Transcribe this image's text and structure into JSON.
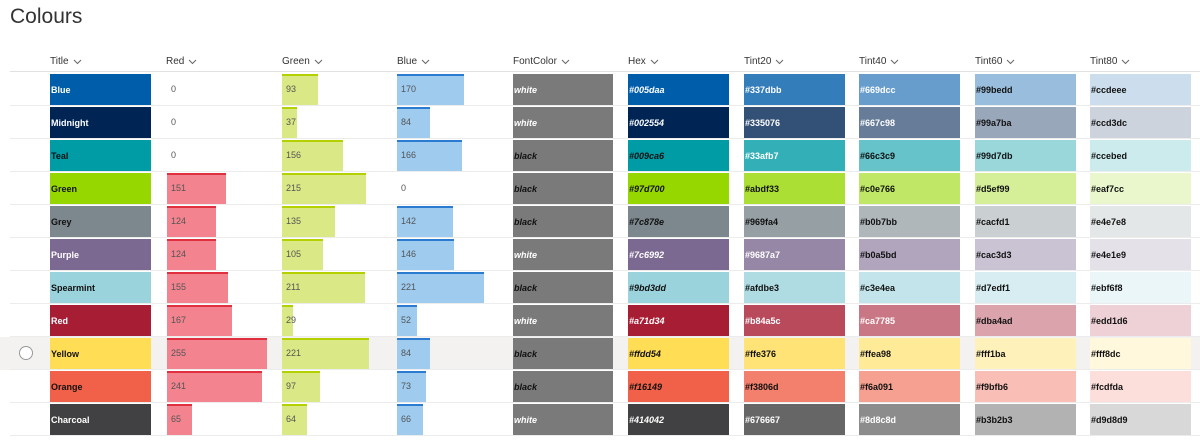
{
  "page": {
    "title": "Colours"
  },
  "columns": [
    {
      "key": "title",
      "label": "Title"
    },
    {
      "key": "red",
      "label": "Red"
    },
    {
      "key": "green",
      "label": "Green"
    },
    {
      "key": "blue",
      "label": "Blue"
    },
    {
      "key": "fontcolor",
      "label": "FontColor"
    },
    {
      "key": "hex",
      "label": "Hex"
    },
    {
      "key": "tint20",
      "label": "Tint20"
    },
    {
      "key": "tint40",
      "label": "Tint40"
    },
    {
      "key": "tint60",
      "label": "Tint60"
    },
    {
      "key": "tint80",
      "label": "Tint80"
    }
  ],
  "colors": {
    "red_bar": "#f2838f",
    "green_bar": "#dbe886",
    "blue_bar": "#9ecbee",
    "fontcolor_bg": "#7a7a7a"
  },
  "bar_max": 255,
  "selected_row": 8,
  "rows": [
    {
      "title": "Blue",
      "red": "0",
      "green": "93",
      "blue": "170",
      "fontcolor": "white",
      "hex": "#005daa",
      "tint20": "#337dbb",
      "tint40": "#669dcc",
      "tint60": "#99bedd",
      "tint80": "#ccdeee"
    },
    {
      "title": "Midnight",
      "red": "0",
      "green": "37",
      "blue": "84",
      "fontcolor": "white",
      "hex": "#002554",
      "tint20": "#335076",
      "tint40": "#667c98",
      "tint60": "#99a7ba",
      "tint80": "#ccd3dc"
    },
    {
      "title": "Teal",
      "red": "0",
      "green": "156",
      "blue": "166",
      "fontcolor": "black",
      "hex": "#009ca6",
      "tint20": "#33afb7",
      "tint40": "#66c3c9",
      "tint60": "#99d7db",
      "tint80": "#ccebed"
    },
    {
      "title": "Green",
      "red": "151",
      "green": "215",
      "blue": "0",
      "fontcolor": "black",
      "hex": "#97d700",
      "tint20": "#abdf33",
      "tint40": "#c0e766",
      "tint60": "#d5ef99",
      "tint80": "#eaf7cc"
    },
    {
      "title": "Grey",
      "red": "124",
      "green": "135",
      "blue": "142",
      "fontcolor": "black",
      "hex": "#7c878e",
      "tint20": "#969fa4",
      "tint40": "#b0b7bb",
      "tint60": "#cacfd1",
      "tint80": "#e4e7e8"
    },
    {
      "title": "Purple",
      "red": "124",
      "green": "105",
      "blue": "146",
      "fontcolor": "white",
      "hex": "#7c6992",
      "tint20": "#9687a7",
      "tint40": "#b0a5bd",
      "tint60": "#cac3d3",
      "tint80": "#e4e1e9"
    },
    {
      "title": "Spearmint",
      "red": "155",
      "green": "211",
      "blue": "221",
      "fontcolor": "black",
      "hex": "#9bd3dd",
      "tint20": "#afdbe3",
      "tint40": "#c3e4ea",
      "tint60": "#d7edf1",
      "tint80": "#ebf6f8"
    },
    {
      "title": "Red",
      "red": "167",
      "green": "29",
      "blue": "52",
      "fontcolor": "white",
      "hex": "#a71d34",
      "tint20": "#b84a5c",
      "tint40": "#ca7785",
      "tint60": "#dba4ad",
      "tint80": "#edd1d6"
    },
    {
      "title": "Yellow",
      "red": "255",
      "green": "221",
      "blue": "84",
      "fontcolor": "black",
      "hex": "#ffdd54",
      "tint20": "#ffe376",
      "tint40": "#ffea98",
      "tint60": "#fff1ba",
      "tint80": "#fff8dc"
    },
    {
      "title": "Orange",
      "red": "241",
      "green": "97",
      "blue": "73",
      "fontcolor": "black",
      "hex": "#f16149",
      "tint20": "#f3806d",
      "tint40": "#f6a091",
      "tint60": "#f9bfb6",
      "tint80": "#fcdfda"
    },
    {
      "title": "Charcoal",
      "red": "65",
      "green": "64",
      "blue": "66",
      "fontcolor": "white",
      "hex": "#414042",
      "tint20": "#676667",
      "tint40": "#8d8c8d",
      "tint60": "#b3b2b3",
      "tint80": "#d9d8d9"
    }
  ]
}
